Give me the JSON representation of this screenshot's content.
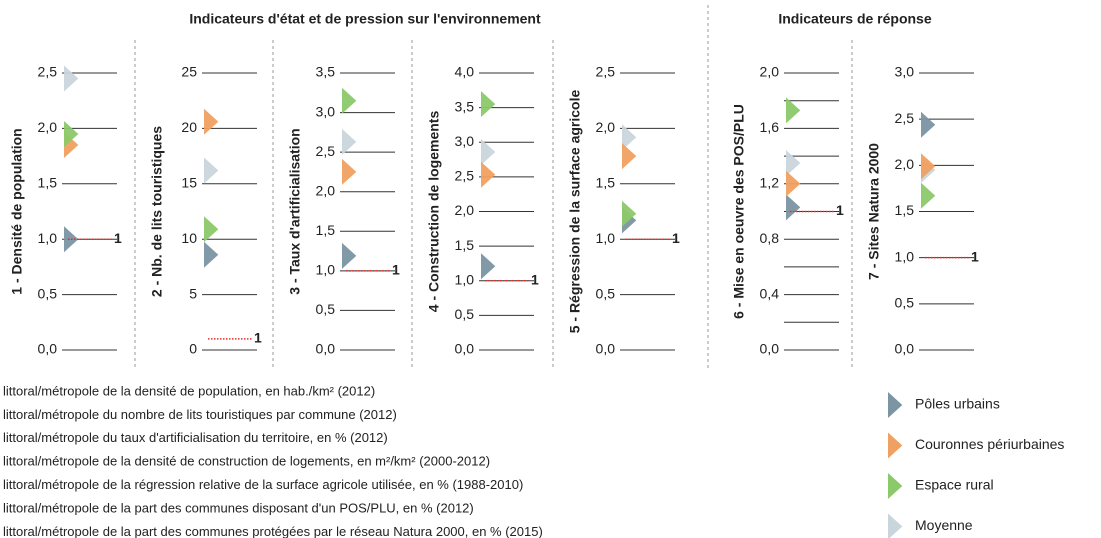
{
  "headings": [
    "Indicateurs d'état et de pression sur l'environnement",
    "Indicateurs de réponse"
  ],
  "legend": {
    "position": "right",
    "series": [
      {
        "name": "Pôles urbains",
        "color": "#7b95a3"
      },
      {
        "name": "Couronnes périurbaines",
        "color": "#f0a060"
      },
      {
        "name": "Espace rural",
        "color": "#8cc96a"
      },
      {
        "name": "Moyenne",
        "color": "#c9d5dc"
      }
    ]
  },
  "reference_color": "#e8302a",
  "chart_data": [
    {
      "type": "marker",
      "title": "1 - Densité de population",
      "ylim": [
        0,
        2.5
      ],
      "yticks": [
        {
          "value": 0,
          "label": "0,0"
        },
        {
          "value": 0.5,
          "label": "0,5"
        },
        {
          "value": 1,
          "label": "1,0"
        },
        {
          "value": 1.5,
          "label": "1,5"
        },
        {
          "value": 2,
          "label": "2,0"
        },
        {
          "value": 2.5,
          "label": "2,5"
        }
      ],
      "values": [
        1.0,
        1.85,
        1.95,
        2.45
      ],
      "reference": 1
    },
    {
      "type": "marker",
      "title": "2 - Nb. de lits touristiques",
      "ylim": [
        0,
        25
      ],
      "yticks": [
        0,
        5,
        10,
        15,
        20,
        25
      ],
      "values": [
        8.6,
        20.6,
        10.9,
        16.2
      ],
      "reference": 1
    },
    {
      "type": "marker",
      "title": "3 - Taux d'artificialisation",
      "ylim": [
        0,
        3.5
      ],
      "yticks": [
        {
          "value": 0,
          "label": "0,0"
        },
        {
          "value": 0.5,
          "label": "0,5"
        },
        {
          "value": 1,
          "label": "1,0"
        },
        {
          "value": 1.5,
          "label": "1,5"
        },
        {
          "value": 2,
          "label": "2,0"
        },
        {
          "value": 2.5,
          "label": "2,5"
        },
        {
          "value": 3,
          "label": "3,0"
        },
        {
          "value": 3.5,
          "label": "3,5"
        }
      ],
      "values": [
        1.19,
        2.25,
        3.15,
        2.63
      ],
      "reference": 1
    },
    {
      "type": "marker",
      "title": "4 - Construction de logements",
      "ylim": [
        0,
        4
      ],
      "yticks": [
        {
          "value": 0,
          "label": "0,0"
        },
        {
          "value": 0.5,
          "label": "0,5"
        },
        {
          "value": 1,
          "label": "1,0"
        },
        {
          "value": 1.5,
          "label": "1,5"
        },
        {
          "value": 2,
          "label": "2,0"
        },
        {
          "value": 2.5,
          "label": "2,5"
        },
        {
          "value": 3,
          "label": "3,0"
        },
        {
          "value": 3.5,
          "label": "3,5"
        },
        {
          "value": 4,
          "label": "4,0"
        }
      ],
      "values": [
        1.21,
        2.53,
        3.55,
        2.86
      ],
      "reference": 1
    },
    {
      "type": "marker",
      "title": "5 - Régression de la surface agricole",
      "ylim": [
        0,
        2.5
      ],
      "yticks": [
        {
          "value": 0,
          "label": "0,0"
        },
        {
          "value": 0.5,
          "label": "0,5"
        },
        {
          "value": 1,
          "label": "1,0"
        },
        {
          "value": 1.5,
          "label": "1,5"
        },
        {
          "value": 2,
          "label": "2,0"
        },
        {
          "value": 2.5,
          "label": "2,5"
        }
      ],
      "values": [
        1.17,
        1.75,
        1.23,
        1.92
      ],
      "reference": 1
    },
    {
      "type": "marker",
      "title": "6 - Mise en oeuvre des POS/PLU",
      "ylim": [
        0,
        2
      ],
      "yticks": [
        {
          "value": 0,
          "label": "0,0"
        },
        {
          "value": 0.4,
          "label": "0,4"
        },
        {
          "value": 0.8,
          "label": "0,8"
        },
        {
          "value": 1.2,
          "label": "1,2"
        },
        {
          "value": 1.6,
          "label": "1,6"
        },
        {
          "value": 2,
          "label": "2,0"
        }
      ],
      "minor_yticks": [
        0.2,
        0.6,
        1.0,
        1.4,
        1.8
      ],
      "values": [
        1.03,
        1.2,
        1.73,
        1.35
      ],
      "reference": 1
    },
    {
      "type": "marker",
      "title": "7 - Sites Natura 2000",
      "ylim": [
        0,
        3
      ],
      "yticks": [
        {
          "value": 0,
          "label": "0,0"
        },
        {
          "value": 0.5,
          "label": "0,5"
        },
        {
          "value": 1,
          "label": "1,0"
        },
        {
          "value": 1.5,
          "label": "1,5"
        },
        {
          "value": 2,
          "label": "2,0"
        },
        {
          "value": 2.5,
          "label": "2,5"
        },
        {
          "value": 3,
          "label": "3,0"
        }
      ],
      "values": [
        2.44,
        1.99,
        1.67,
        1.95
      ],
      "reference": 1
    }
  ],
  "footnotes": [
    "littoral/métropole de la densité de population, en hab./km² (2012)",
    "littoral/métropole du nombre de lits touristiques par commune (2012)",
    "littoral/métropole du taux d'artificialisation du territoire, en % (2012)",
    "littoral/métropole de la densité de construction de logements, en m²/km² (2000-2012)",
    "littoral/métropole de la régression relative de la surface agricole utilisée, en % (1988-2010)",
    "littoral/métropole de la part des communes disposant d'un POS/PLU, en % (2012)",
    "littoral/métropole de la part des communes protégées par le réseau Natura 2000, en % (2015)"
  ]
}
